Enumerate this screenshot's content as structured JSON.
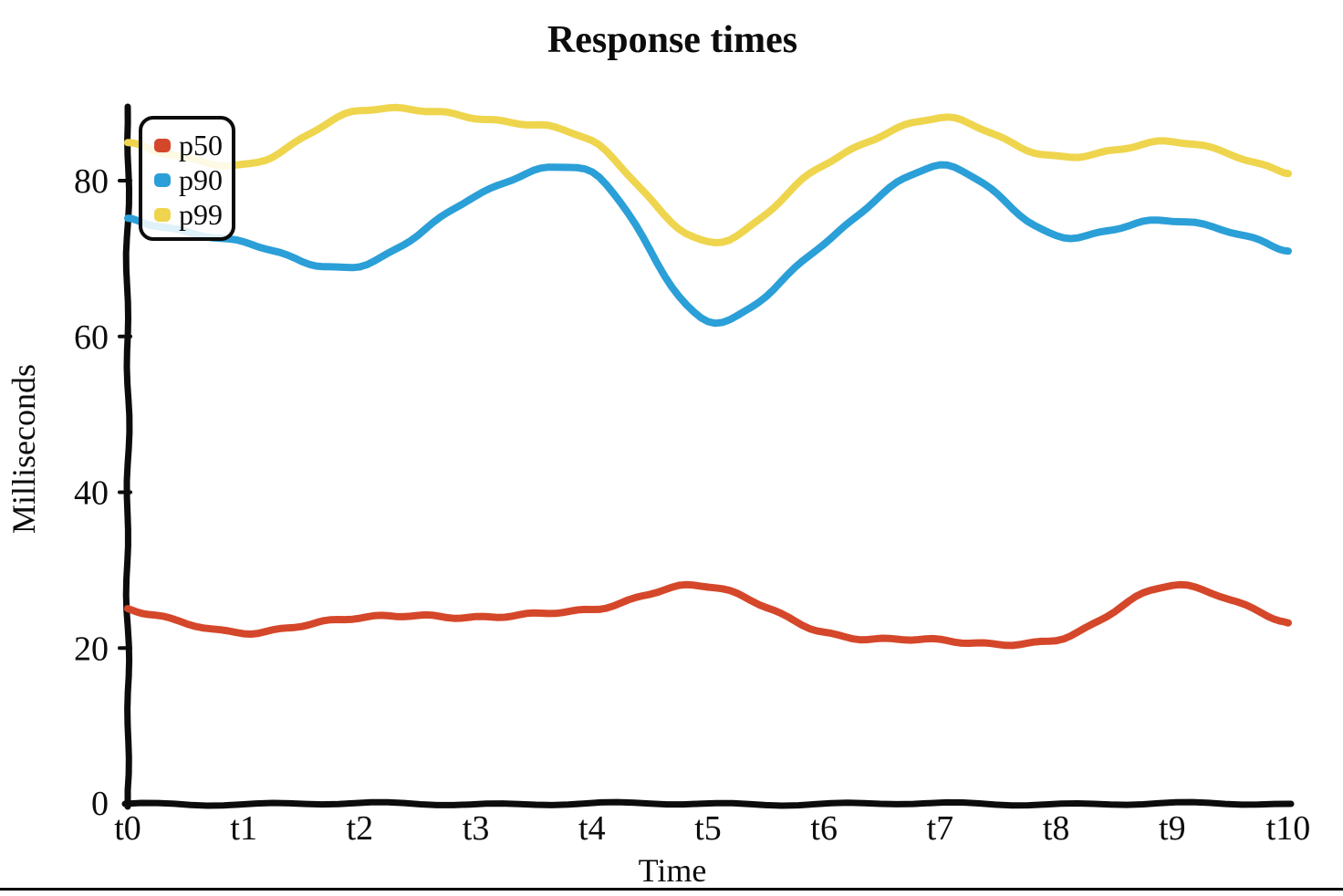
{
  "page": {
    "background": "#ffffff",
    "bottom_border_color": "#000000"
  },
  "chart_data": {
    "type": "line",
    "style": "sketchy-hand-drawn",
    "title": "Response times",
    "xlabel": "Time",
    "ylabel": "Milliseconds",
    "categories": [
      "t0",
      "t1",
      "t2",
      "t3",
      "t4",
      "t5",
      "t6",
      "t7",
      "t8",
      "t9",
      "t10"
    ],
    "y_ticks": [
      0,
      20,
      40,
      60,
      80
    ],
    "ylim": [
      0,
      90
    ],
    "grid": false,
    "legend_position": "top-left",
    "axis_color": "#0c0c0c",
    "series": [
      {
        "name": "p50",
        "color": "#d5472a",
        "values": [
          25,
          22,
          24,
          24,
          25,
          28,
          22,
          21,
          21,
          28,
          23
        ]
      },
      {
        "name": "p90",
        "color": "#2b9fd7",
        "values": [
          75,
          72,
          69,
          78,
          81,
          62,
          72,
          82,
          73,
          75,
          71
        ]
      },
      {
        "name": "p99",
        "color": "#eed54d",
        "values": [
          85,
          82,
          89,
          88,
          85,
          72,
          82,
          88,
          83,
          85,
          81
        ]
      }
    ]
  }
}
